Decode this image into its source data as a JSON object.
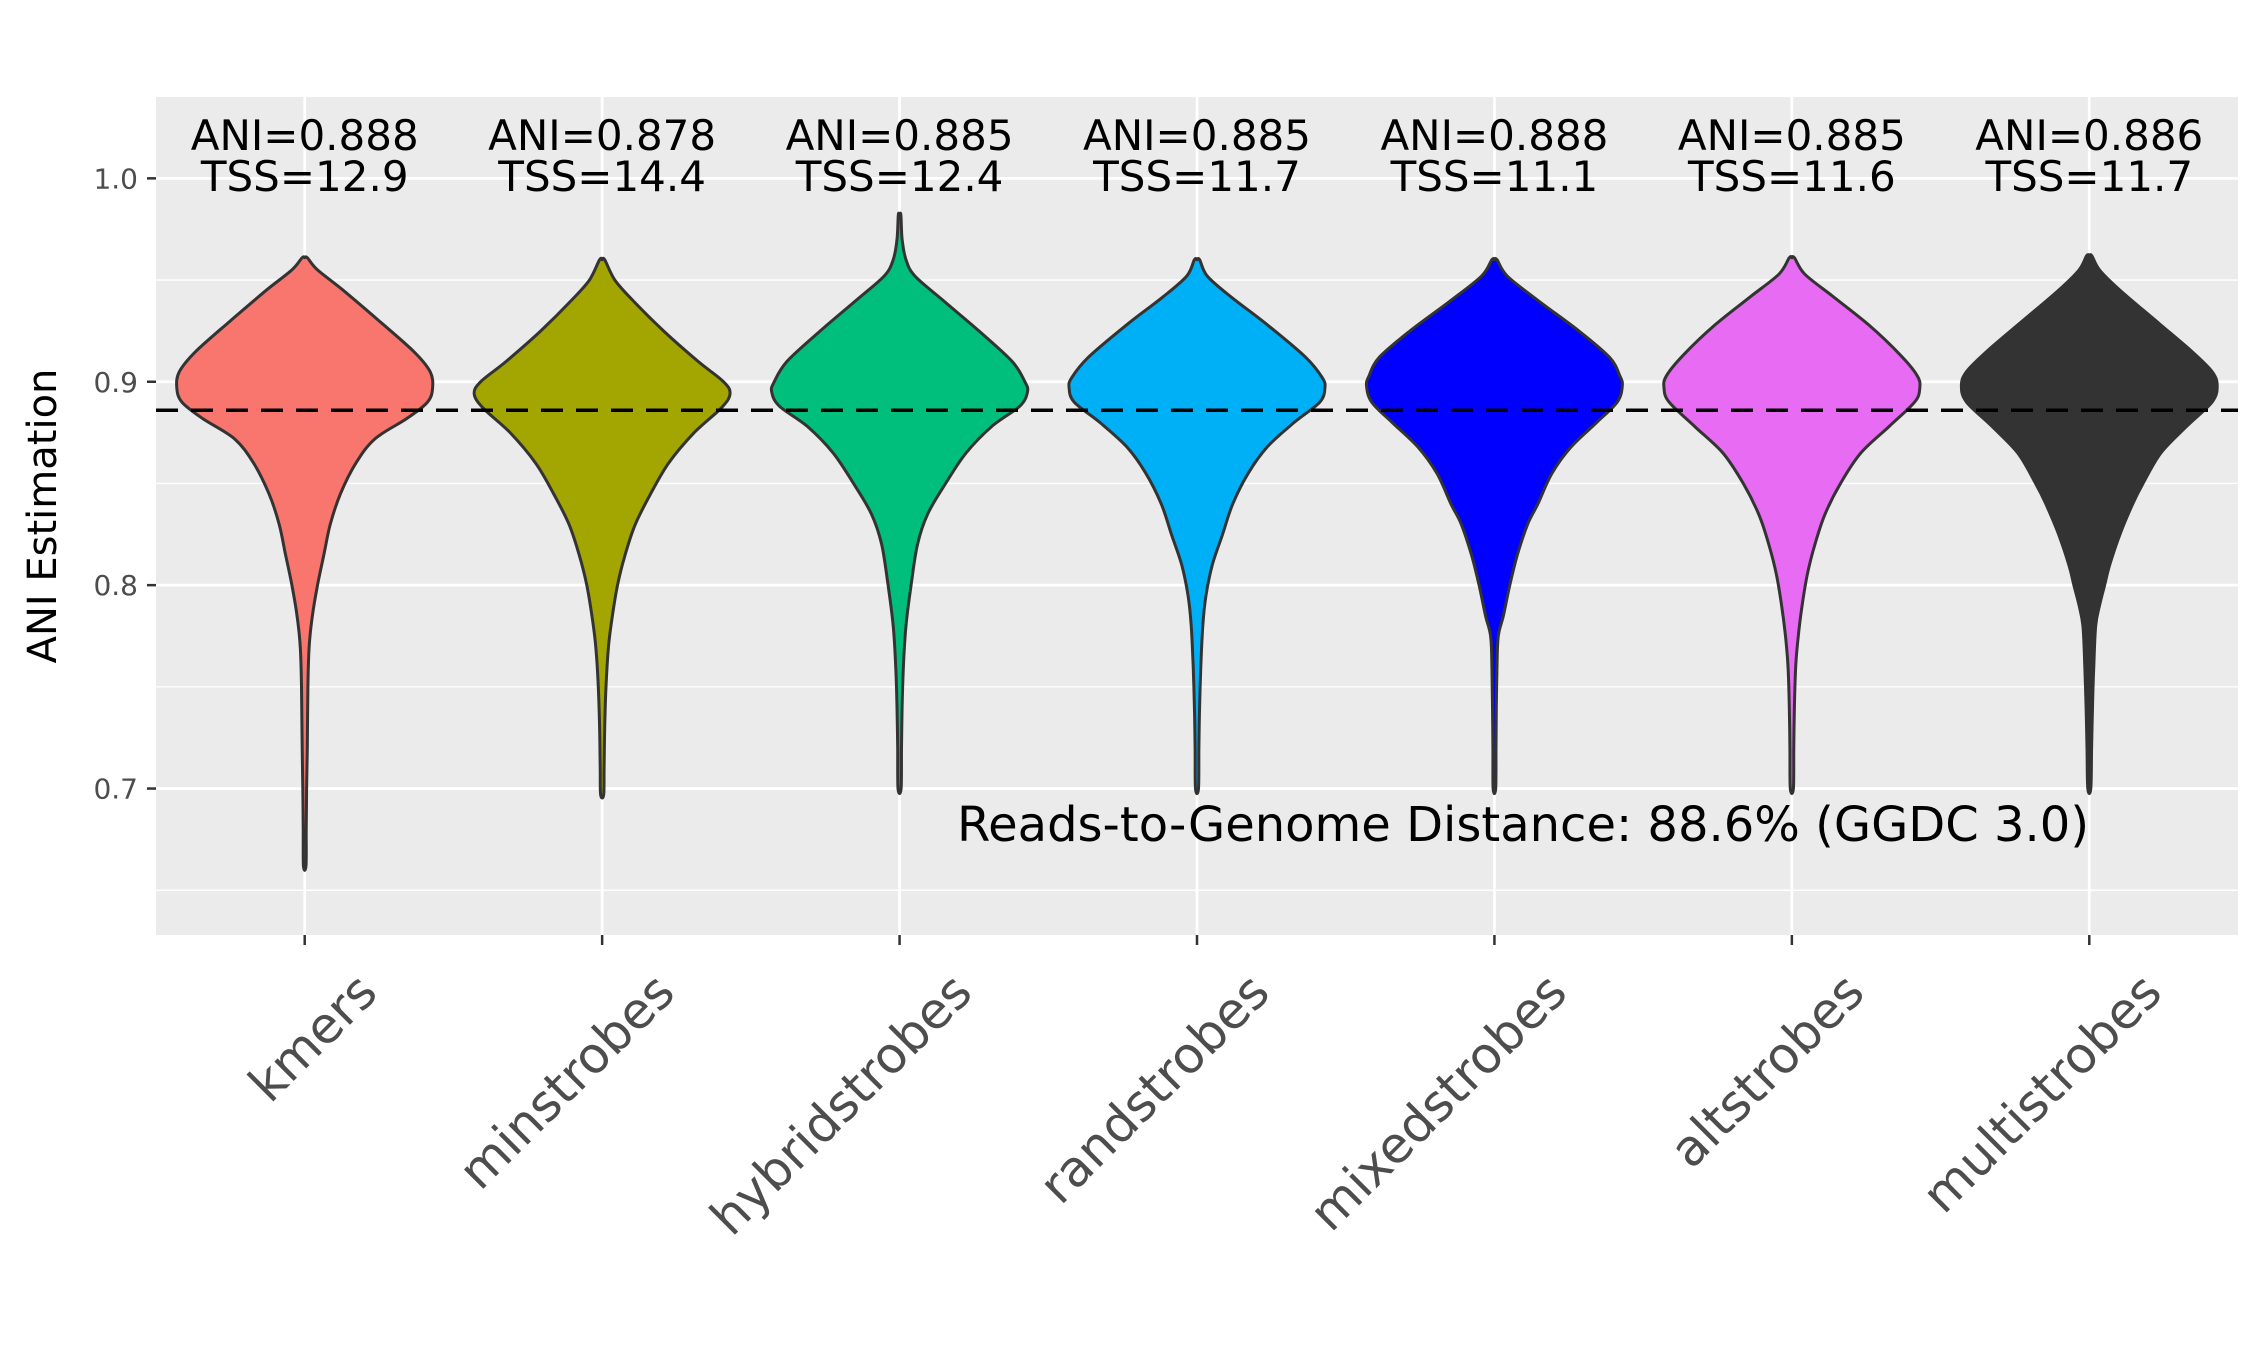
{
  "chart_data": {
    "type": "violin",
    "ylabel": "ANI Estimation",
    "xlabel": "",
    "ylim": [
      0.628,
      1.04
    ],
    "yticks": [
      0.7,
      0.8,
      0.9,
      1.0
    ],
    "ytick_labels": [
      "0.7",
      "0.8",
      "0.9",
      "1.0"
    ],
    "grid": true,
    "reference_line": {
      "y": 0.886,
      "style": "dashed"
    },
    "annotation": {
      "text": "Reads-to-Genome Distance: 88.6% (GGDC 3.0)",
      "x_category": "mixedstrobes",
      "y": 0.682
    },
    "categories": [
      "kmers",
      "minstrobes",
      "hybridstrobes",
      "randstrobes",
      "mixedstrobes",
      "altstrobes",
      "multistrobes"
    ],
    "series": [
      {
        "category": "kmers",
        "color": "#F8766D",
        "ani_label": "ANI=0.888",
        "tss_label": "TSS=12.9",
        "min": 0.662,
        "max": 0.961,
        "density": [
          [
            0.961,
            0.02
          ],
          [
            0.955,
            0.1
          ],
          [
            0.945,
            0.3
          ],
          [
            0.93,
            0.58
          ],
          [
            0.915,
            0.85
          ],
          [
            0.905,
            0.98
          ],
          [
            0.897,
            1.0
          ],
          [
            0.89,
            0.96
          ],
          [
            0.882,
            0.8
          ],
          [
            0.872,
            0.55
          ],
          [
            0.86,
            0.4
          ],
          [
            0.845,
            0.28
          ],
          [
            0.83,
            0.2
          ],
          [
            0.815,
            0.15
          ],
          [
            0.8,
            0.1
          ],
          [
            0.785,
            0.06
          ],
          [
            0.77,
            0.035
          ],
          [
            0.75,
            0.025
          ],
          [
            0.72,
            0.02
          ],
          [
            0.7,
            0.015
          ],
          [
            0.68,
            0.012
          ],
          [
            0.662,
            0.01
          ]
        ]
      },
      {
        "category": "minstrobes",
        "color": "#A3A500",
        "ani_label": "ANI=0.878",
        "tss_label": "TSS=14.4",
        "min": 0.697,
        "max": 0.96,
        "density": [
          [
            0.96,
            0.02
          ],
          [
            0.95,
            0.1
          ],
          [
            0.94,
            0.24
          ],
          [
            0.925,
            0.48
          ],
          [
            0.91,
            0.75
          ],
          [
            0.9,
            0.95
          ],
          [
            0.894,
            1.0
          ],
          [
            0.887,
            0.93
          ],
          [
            0.875,
            0.72
          ],
          [
            0.86,
            0.52
          ],
          [
            0.845,
            0.38
          ],
          [
            0.83,
            0.26
          ],
          [
            0.815,
            0.18
          ],
          [
            0.8,
            0.12
          ],
          [
            0.785,
            0.08
          ],
          [
            0.77,
            0.05
          ],
          [
            0.75,
            0.03
          ],
          [
            0.73,
            0.02
          ],
          [
            0.71,
            0.015
          ],
          [
            0.697,
            0.012
          ]
        ]
      },
      {
        "category": "hybridstrobes",
        "color": "#00BF7D",
        "ani_label": "ANI=0.885",
        "tss_label": "TSS=12.4",
        "min": 0.7,
        "max": 0.982,
        "density": [
          [
            0.982,
            0.01
          ],
          [
            0.97,
            0.02
          ],
          [
            0.96,
            0.05
          ],
          [
            0.952,
            0.12
          ],
          [
            0.94,
            0.34
          ],
          [
            0.925,
            0.62
          ],
          [
            0.91,
            0.88
          ],
          [
            0.9,
            0.98
          ],
          [
            0.895,
            1.0
          ],
          [
            0.888,
            0.94
          ],
          [
            0.878,
            0.72
          ],
          [
            0.865,
            0.52
          ],
          [
            0.85,
            0.36
          ],
          [
            0.835,
            0.22
          ],
          [
            0.82,
            0.14
          ],
          [
            0.8,
            0.09
          ],
          [
            0.78,
            0.05
          ],
          [
            0.76,
            0.03
          ],
          [
            0.74,
            0.02
          ],
          [
            0.72,
            0.015
          ],
          [
            0.7,
            0.012
          ]
        ]
      },
      {
        "category": "randstrobes",
        "color": "#00B0F6",
        "ani_label": "ANI=0.885",
        "tss_label": "TSS=11.7",
        "min": 0.7,
        "max": 0.96,
        "density": [
          [
            0.96,
            0.02
          ],
          [
            0.952,
            0.08
          ],
          [
            0.942,
            0.26
          ],
          [
            0.928,
            0.55
          ],
          [
            0.912,
            0.85
          ],
          [
            0.902,
            0.98
          ],
          [
            0.897,
            1.0
          ],
          [
            0.89,
            0.96
          ],
          [
            0.88,
            0.76
          ],
          [
            0.868,
            0.55
          ],
          [
            0.855,
            0.4
          ],
          [
            0.84,
            0.28
          ],
          [
            0.825,
            0.2
          ],
          [
            0.81,
            0.12
          ],
          [
            0.795,
            0.07
          ],
          [
            0.78,
            0.045
          ],
          [
            0.76,
            0.03
          ],
          [
            0.74,
            0.02
          ],
          [
            0.72,
            0.015
          ],
          [
            0.7,
            0.012
          ]
        ]
      },
      {
        "category": "mixedstrobes",
        "color": "#0000FF",
        "ani_label": "ANI=0.888",
        "tss_label": "TSS=11.1",
        "min": 0.7,
        "max": 0.96,
        "density": [
          [
            0.96,
            0.02
          ],
          [
            0.952,
            0.1
          ],
          [
            0.94,
            0.34
          ],
          [
            0.925,
            0.66
          ],
          [
            0.912,
            0.9
          ],
          [
            0.903,
            0.98
          ],
          [
            0.898,
            1.0
          ],
          [
            0.89,
            0.96
          ],
          [
            0.88,
            0.8
          ],
          [
            0.868,
            0.6
          ],
          [
            0.855,
            0.45
          ],
          [
            0.84,
            0.34
          ],
          [
            0.83,
            0.26
          ],
          [
            0.815,
            0.18
          ],
          [
            0.8,
            0.12
          ],
          [
            0.785,
            0.07
          ],
          [
            0.775,
            0.03
          ],
          [
            0.76,
            0.02
          ],
          [
            0.74,
            0.015
          ],
          [
            0.72,
            0.012
          ],
          [
            0.7,
            0.01
          ]
        ]
      },
      {
        "category": "altstrobes",
        "color": "#E76BF3",
        "ani_label": "ANI=0.885",
        "tss_label": "TSS=11.6",
        "min": 0.7,
        "max": 0.961,
        "density": [
          [
            0.961,
            0.02
          ],
          [
            0.953,
            0.1
          ],
          [
            0.942,
            0.32
          ],
          [
            0.928,
            0.6
          ],
          [
            0.913,
            0.85
          ],
          [
            0.903,
            0.98
          ],
          [
            0.897,
            1.0
          ],
          [
            0.89,
            0.96
          ],
          [
            0.878,
            0.76
          ],
          [
            0.865,
            0.54
          ],
          [
            0.85,
            0.38
          ],
          [
            0.835,
            0.26
          ],
          [
            0.82,
            0.18
          ],
          [
            0.805,
            0.12
          ],
          [
            0.79,
            0.08
          ],
          [
            0.775,
            0.05
          ],
          [
            0.76,
            0.03
          ],
          [
            0.74,
            0.02
          ],
          [
            0.72,
            0.015
          ],
          [
            0.7,
            0.012
          ]
        ]
      },
      {
        "category": "multistrobes",
        "color": "#333333",
        "ani_label": "ANI=0.886",
        "tss_label": "TSS=11.7",
        "min": 0.7,
        "max": 0.962,
        "density": [
          [
            0.962,
            0.02
          ],
          [
            0.955,
            0.08
          ],
          [
            0.945,
            0.24
          ],
          [
            0.93,
            0.52
          ],
          [
            0.915,
            0.8
          ],
          [
            0.905,
            0.96
          ],
          [
            0.898,
            1.0
          ],
          [
            0.89,
            0.96
          ],
          [
            0.878,
            0.76
          ],
          [
            0.865,
            0.56
          ],
          [
            0.85,
            0.42
          ],
          [
            0.84,
            0.34
          ],
          [
            0.825,
            0.24
          ],
          [
            0.81,
            0.16
          ],
          [
            0.8,
            0.12
          ],
          [
            0.79,
            0.08
          ],
          [
            0.78,
            0.05
          ],
          [
            0.76,
            0.035
          ],
          [
            0.74,
            0.025
          ],
          [
            0.72,
            0.018
          ],
          [
            0.7,
            0.012
          ]
        ]
      }
    ]
  }
}
